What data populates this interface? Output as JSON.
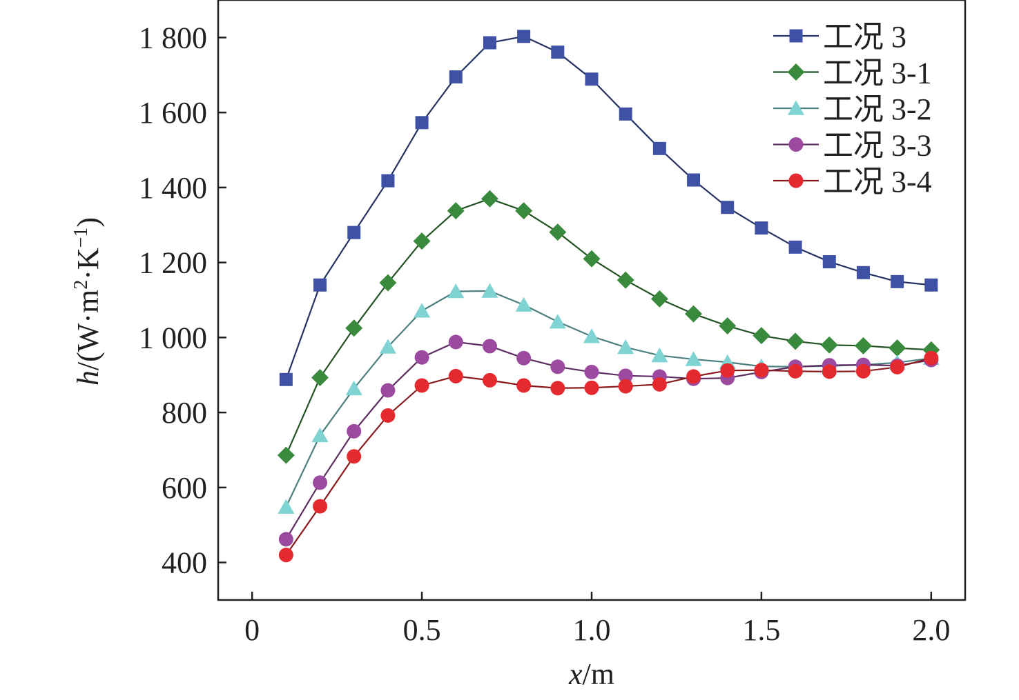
{
  "chart_data": {
    "type": "line",
    "title": "",
    "xlabel": {
      "var": "x",
      "unit": "/m"
    },
    "ylabel": {
      "var": "h",
      "unit_prefix": "/(W·m",
      "sup1": "2",
      "mid": "·K",
      "sup2": "−1",
      "unit_suffix": ")"
    },
    "xlim": [
      -0.1,
      2.1
    ],
    "ylim": [
      300,
      1900
    ],
    "xticks": [
      0,
      0.5,
      1.0,
      1.5,
      2.0
    ],
    "xtick_labels": [
      "0",
      "0.5",
      "1.0",
      "1.5",
      "2.0"
    ],
    "yticks": [
      400,
      600,
      800,
      1000,
      1200,
      1400,
      1600,
      1800
    ],
    "ytick_labels": [
      "400",
      "600",
      "800",
      "1 000",
      "1 200",
      "1 400",
      "1 600",
      "1 800"
    ],
    "grid": false,
    "legend_position": "top-right",
    "x": [
      0.1,
      0.2,
      0.3,
      0.4,
      0.5,
      0.6,
      0.7,
      0.8,
      0.9,
      1.0,
      1.1,
      1.2,
      1.3,
      1.4,
      1.5,
      1.6,
      1.7,
      1.8,
      1.9,
      2.0
    ],
    "series": [
      {
        "name": "工况 3",
        "marker": "square",
        "color": "#3f51a5",
        "values": [
          888,
          1140,
          1280,
          1418,
          1573,
          1695,
          1786,
          1803,
          1761,
          1689,
          1596,
          1504,
          1420,
          1347,
          1292,
          1241,
          1202,
          1173,
          1149,
          1140
        ]
      },
      {
        "name": "工况 3-1",
        "marker": "diamond",
        "color": "#3a8a3e",
        "values": [
          686,
          893,
          1025,
          1146,
          1257,
          1338,
          1370,
          1338,
          1281,
          1210,
          1153,
          1103,
          1063,
          1031,
          1005,
          990,
          980,
          978,
          972,
          967
        ]
      },
      {
        "name": "工况 3-2",
        "marker": "triangle",
        "color": "#7fd3d2",
        "values": [
          548,
          739,
          864,
          975,
          1071,
          1123,
          1124,
          1087,
          1042,
          1003,
          974,
          952,
          942,
          934,
          923,
          922,
          924,
          927,
          933,
          945
        ]
      },
      {
        "name": "工况 3-3",
        "marker": "circle",
        "color": "#9b4aa0",
        "values": [
          462,
          613,
          750,
          859,
          947,
          988,
          977,
          945,
          922,
          908,
          898,
          896,
          890,
          892,
          908,
          922,
          926,
          927,
          925,
          940
        ]
      },
      {
        "name": "工况 3-4",
        "marker": "circle",
        "color": "#e52a2f",
        "values": [
          420,
          550,
          683,
          792,
          872,
          897,
          886,
          872,
          865,
          866,
          870,
          875,
          896,
          912,
          913,
          910,
          909,
          910,
          921,
          945
        ]
      }
    ]
  }
}
